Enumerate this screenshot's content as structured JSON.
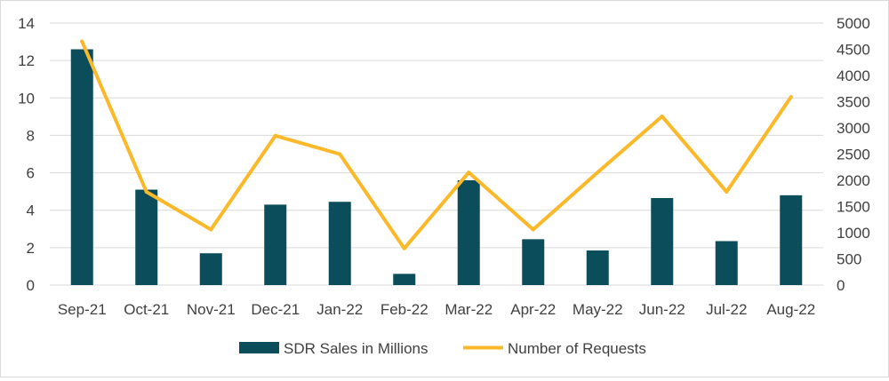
{
  "chart_data": {
    "type": "bar+line",
    "categories": [
      "Sep-21",
      "Oct-21",
      "Nov-21",
      "Dec-21",
      "Jan-22",
      "Feb-22",
      "Mar-22",
      "Apr-22",
      "May-22",
      "Jun-22",
      "Jul-22",
      "Aug-22"
    ],
    "series": [
      {
        "name": "SDR Sales in Millions",
        "type": "bar",
        "axis": "left",
        "color": "#0b4d5a",
        "values": [
          12.6,
          5.1,
          1.7,
          4.3,
          4.45,
          0.6,
          5.6,
          2.45,
          1.85,
          4.65,
          2.35,
          4.8
        ]
      },
      {
        "name": "Number of Requests",
        "type": "line",
        "axis": "right",
        "color": "#fbb829",
        "values": [
          4650,
          1780,
          1060,
          2850,
          2500,
          700,
          2150,
          1060,
          2150,
          3220,
          1780,
          3590
        ]
      }
    ],
    "y_left": {
      "min": 0,
      "max": 14,
      "step": 2,
      "ticks": [
        "0",
        "2",
        "4",
        "6",
        "8",
        "10",
        "12",
        "14"
      ]
    },
    "y_right": {
      "min": 0,
      "max": 5000,
      "step": 500,
      "ticks": [
        "0",
        "500",
        "1000",
        "1500",
        "2000",
        "2500",
        "3000",
        "3500",
        "4000",
        "4500",
        "5000"
      ]
    },
    "grid": true,
    "legend_position": "bottom",
    "title": "",
    "xlabel": "",
    "ylabel": ""
  }
}
